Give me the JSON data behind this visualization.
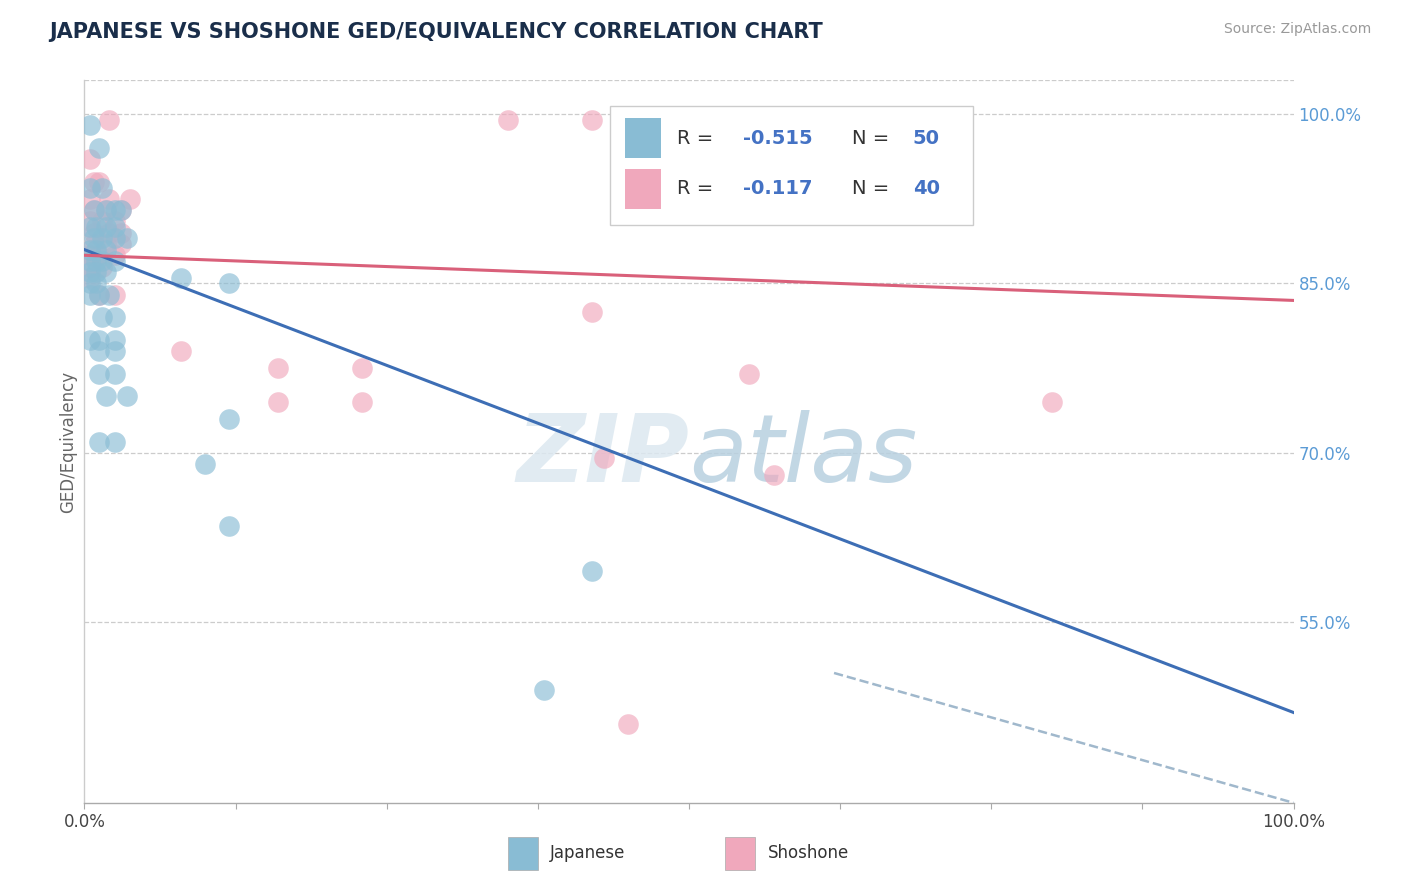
{
  "title": "JAPANESE VS SHOSHONE GED/EQUIVALENCY CORRELATION CHART",
  "source": "Source: ZipAtlas.com",
  "ylabel": "GED/Equivalency",
  "xlim": [
    0.0,
    1.0
  ],
  "ylim": [
    0.39,
    1.03
  ],
  "ytick_positions": [
    0.55,
    0.7,
    0.85,
    1.0
  ],
  "ytick_labels": [
    "55.0%",
    "70.0%",
    "85.0%",
    "100.0%"
  ],
  "background_color": "#ffffff",
  "watermark_zip": "ZIP",
  "watermark_atlas": "atlas",
  "japanese_color": "#89bcd4",
  "shoshone_color": "#f0a8bc",
  "japanese_line_color": "#3d6eb5",
  "shoshone_line_color": "#d9607a",
  "japanese_line": [
    0.0,
    0.88,
    1.0,
    0.47
  ],
  "shoshone_line": [
    0.0,
    0.875,
    1.0,
    0.835
  ],
  "dashed_line": [
    0.62,
    0.505,
    1.0,
    0.39
  ],
  "japanese_scatter": [
    [
      0.005,
      0.99
    ],
    [
      0.012,
      0.97
    ],
    [
      0.005,
      0.935
    ],
    [
      0.015,
      0.935
    ],
    [
      0.008,
      0.915
    ],
    [
      0.018,
      0.915
    ],
    [
      0.025,
      0.915
    ],
    [
      0.03,
      0.915
    ],
    [
      0.005,
      0.9
    ],
    [
      0.01,
      0.9
    ],
    [
      0.018,
      0.9
    ],
    [
      0.025,
      0.9
    ],
    [
      0.008,
      0.89
    ],
    [
      0.015,
      0.89
    ],
    [
      0.025,
      0.89
    ],
    [
      0.035,
      0.89
    ],
    [
      0.005,
      0.88
    ],
    [
      0.01,
      0.88
    ],
    [
      0.018,
      0.88
    ],
    [
      0.005,
      0.87
    ],
    [
      0.01,
      0.87
    ],
    [
      0.015,
      0.87
    ],
    [
      0.025,
      0.87
    ],
    [
      0.005,
      0.86
    ],
    [
      0.01,
      0.86
    ],
    [
      0.018,
      0.86
    ],
    [
      0.005,
      0.85
    ],
    [
      0.01,
      0.85
    ],
    [
      0.08,
      0.855
    ],
    [
      0.12,
      0.85
    ],
    [
      0.005,
      0.84
    ],
    [
      0.012,
      0.84
    ],
    [
      0.02,
      0.84
    ],
    [
      0.015,
      0.82
    ],
    [
      0.025,
      0.82
    ],
    [
      0.005,
      0.8
    ],
    [
      0.012,
      0.8
    ],
    [
      0.025,
      0.8
    ],
    [
      0.012,
      0.79
    ],
    [
      0.025,
      0.79
    ],
    [
      0.012,
      0.77
    ],
    [
      0.025,
      0.77
    ],
    [
      0.018,
      0.75
    ],
    [
      0.035,
      0.75
    ],
    [
      0.12,
      0.73
    ],
    [
      0.012,
      0.71
    ],
    [
      0.025,
      0.71
    ],
    [
      0.1,
      0.69
    ],
    [
      0.12,
      0.635
    ],
    [
      0.42,
      0.595
    ],
    [
      0.38,
      0.49
    ]
  ],
  "shoshone_scatter": [
    [
      0.02,
      0.995
    ],
    [
      0.35,
      0.995
    ],
    [
      0.42,
      0.995
    ],
    [
      0.005,
      0.96
    ],
    [
      0.008,
      0.94
    ],
    [
      0.012,
      0.94
    ],
    [
      0.005,
      0.925
    ],
    [
      0.02,
      0.925
    ],
    [
      0.038,
      0.925
    ],
    [
      0.008,
      0.915
    ],
    [
      0.018,
      0.915
    ],
    [
      0.03,
      0.915
    ],
    [
      0.005,
      0.905
    ],
    [
      0.015,
      0.905
    ],
    [
      0.025,
      0.905
    ],
    [
      0.008,
      0.895
    ],
    [
      0.02,
      0.895
    ],
    [
      0.03,
      0.895
    ],
    [
      0.008,
      0.885
    ],
    [
      0.018,
      0.885
    ],
    [
      0.03,
      0.885
    ],
    [
      0.005,
      0.875
    ],
    [
      0.012,
      0.875
    ],
    [
      0.025,
      0.875
    ],
    [
      0.005,
      0.865
    ],
    [
      0.015,
      0.865
    ],
    [
      0.005,
      0.855
    ],
    [
      0.012,
      0.84
    ],
    [
      0.025,
      0.84
    ],
    [
      0.42,
      0.825
    ],
    [
      0.08,
      0.79
    ],
    [
      0.16,
      0.775
    ],
    [
      0.23,
      0.775
    ],
    [
      0.55,
      0.77
    ],
    [
      0.16,
      0.745
    ],
    [
      0.23,
      0.745
    ],
    [
      0.8,
      0.745
    ],
    [
      0.43,
      0.695
    ],
    [
      0.57,
      0.68
    ],
    [
      0.45,
      0.46
    ]
  ]
}
